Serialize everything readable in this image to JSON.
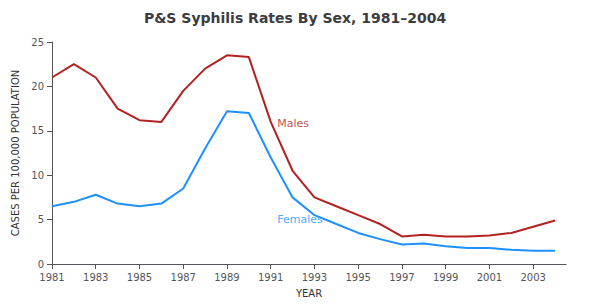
{
  "chart_data": {
    "type": "line",
    "title": "P&S Syphilis Rates By Sex, 1981–2004",
    "xlabel": "YEAR",
    "ylabel": "CASES PER 100,000 POPULATION",
    "x": [
      1981,
      1982,
      1983,
      1984,
      1985,
      1986,
      1987,
      1988,
      1989,
      1990,
      1991,
      1992,
      1993,
      1994,
      1995,
      1996,
      1997,
      1998,
      1999,
      2000,
      2001,
      2002,
      2003,
      2004
    ],
    "series": [
      {
        "name": "Males",
        "color": "#b22222",
        "values": [
          21.0,
          22.5,
          21.0,
          17.5,
          16.2,
          16.0,
          19.5,
          22.0,
          23.5,
          23.3,
          16.0,
          10.5,
          7.5,
          6.5,
          5.5,
          4.5,
          3.1,
          3.3,
          3.1,
          3.1,
          3.2,
          3.5,
          4.2,
          4.9
        ]
      },
      {
        "name": "Females",
        "color": "#1e90ff",
        "values": [
          6.5,
          7.0,
          7.8,
          6.8,
          6.5,
          6.8,
          8.5,
          13.0,
          17.2,
          17.0,
          12.0,
          7.5,
          5.5,
          4.5,
          3.5,
          2.8,
          2.2,
          2.3,
          2.0,
          1.8,
          1.8,
          1.6,
          1.5,
          1.5
        ]
      }
    ],
    "annotations": [
      {
        "text": "Males",
        "x": 1991.3,
        "y": 15.8,
        "color": "#b22222"
      },
      {
        "text": "Females",
        "x": 1991.3,
        "y": 5.0,
        "color": "#1e90ff"
      }
    ],
    "xlim": [
      1981,
      2004.5
    ],
    "ylim": [
      0,
      25
    ],
    "xticks": [
      1981,
      1983,
      1985,
      1987,
      1989,
      1991,
      1993,
      1995,
      1997,
      1999,
      2001,
      2003
    ],
    "yticks": [
      0,
      5,
      10,
      15,
      20,
      25
    ],
    "grid": false
  }
}
